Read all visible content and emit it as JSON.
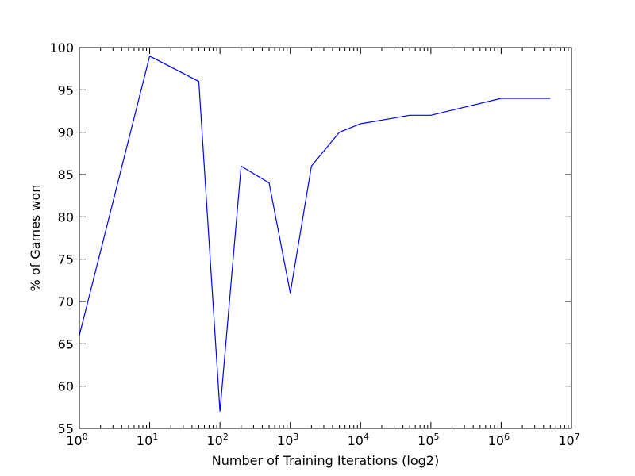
{
  "chart_data": {
    "type": "line",
    "title": "",
    "xlabel": "Number of Training Iterations (log2)",
    "ylabel": "% of Games won",
    "x_scale": "log",
    "xlim": [
      1,
      10000000
    ],
    "ylim": [
      55,
      100
    ],
    "x_ticks": [
      {
        "value": 1,
        "base": "10",
        "exp": "0"
      },
      {
        "value": 10,
        "base": "10",
        "exp": "1"
      },
      {
        "value": 100,
        "base": "10",
        "exp": "2"
      },
      {
        "value": 1000,
        "base": "10",
        "exp": "3"
      },
      {
        "value": 10000,
        "base": "10",
        "exp": "4"
      },
      {
        "value": 100000,
        "base": "10",
        "exp": "5"
      },
      {
        "value": 1000000,
        "base": "10",
        "exp": "6"
      },
      {
        "value": 10000000,
        "base": "10",
        "exp": "7"
      }
    ],
    "y_ticks": [
      {
        "value": 55,
        "label": "55"
      },
      {
        "value": 60,
        "label": "60"
      },
      {
        "value": 65,
        "label": "65"
      },
      {
        "value": 70,
        "label": "70"
      },
      {
        "value": 75,
        "label": "75"
      },
      {
        "value": 80,
        "label": "80"
      },
      {
        "value": 85,
        "label": "85"
      },
      {
        "value": 90,
        "label": "90"
      },
      {
        "value": 95,
        "label": "95"
      },
      {
        "value": 100,
        "label": "100"
      }
    ],
    "grid": false,
    "series": [
      {
        "color": "#0000ff",
        "x": [
          1,
          10,
          50,
          100,
          200,
          500,
          1000,
          2000,
          5000,
          10000,
          50000,
          100000,
          1000000,
          5000000
        ],
        "y": [
          66,
          99,
          96,
          57,
          86,
          84,
          71,
          86,
          90,
          91,
          92,
          92,
          94,
          94
        ]
      }
    ]
  }
}
